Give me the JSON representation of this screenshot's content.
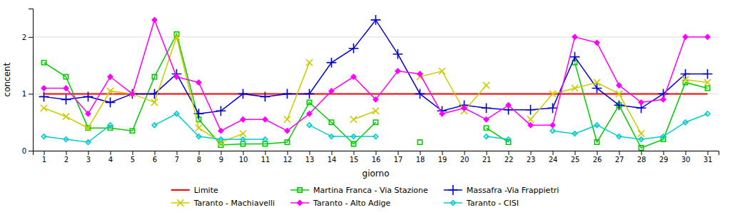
{
  "chart_data": {
    "type": "line",
    "xlabel": "giorno",
    "ylabel": "concent",
    "x": [
      1,
      2,
      3,
      4,
      5,
      6,
      7,
      8,
      9,
      10,
      11,
      12,
      13,
      14,
      15,
      16,
      17,
      18,
      19,
      20,
      21,
      22,
      23,
      24,
      25,
      26,
      27,
      28,
      29,
      30,
      31
    ],
    "xlim": [
      0.5,
      31.5
    ],
    "xticks": [
      1,
      2,
      3,
      4,
      5,
      6,
      7,
      8,
      9,
      10,
      11,
      12,
      13,
      14,
      15,
      16,
      17,
      18,
      19,
      20,
      21,
      22,
      23,
      24,
      25,
      26,
      27,
      28,
      29,
      30,
      31
    ],
    "ylim": [
      0,
      2.5
    ],
    "yticks": [
      0,
      1,
      2
    ],
    "grid": "y",
    "legend": "bottom",
    "series": [
      {
        "name": "Limite",
        "color": "#ff0000",
        "marker": "none",
        "line_style": "solid",
        "values": [
          1,
          1,
          1,
          1,
          1,
          1,
          1,
          1,
          1,
          1,
          1,
          1,
          1,
          1,
          1,
          1,
          1,
          1,
          1,
          1,
          1,
          1,
          1,
          1,
          1,
          1,
          1,
          1,
          1,
          1,
          1
        ]
      },
      {
        "name": "Martina Franca - Via Stazione",
        "color": "#00cc00",
        "marker": "square-open",
        "line_style": "solid",
        "values": [
          1.55,
          1.3,
          0.4,
          0.4,
          0.35,
          1.3,
          2.05,
          0.55,
          0.1,
          0.12,
          0.12,
          0.15,
          0.85,
          0.5,
          0.12,
          0.5,
          null,
          0.15,
          null,
          null,
          0.4,
          0.15,
          null,
          null,
          1.55,
          0.15,
          0.8,
          0.05,
          0.2,
          1.2,
          1.1
        ]
      },
      {
        "name": "Massafra -Via Frappietri",
        "color": "#0000cc",
        "marker": "plus",
        "line_style": "solid",
        "values": [
          0.95,
          0.9,
          0.95,
          0.85,
          1.0,
          1.0,
          1.35,
          0.65,
          0.7,
          1.0,
          0.95,
          1.0,
          1.0,
          1.55,
          1.8,
          2.3,
          1.7,
          1.0,
          0.7,
          0.8,
          0.75,
          0.72,
          0.72,
          0.75,
          1.65,
          1.1,
          0.8,
          0.75,
          1.0,
          1.35,
          1.35
        ]
      },
      {
        "name": "Taranto - Machiavelli",
        "color": "#cccc00",
        "marker": "x",
        "line_style": "solid",
        "values": [
          0.75,
          0.6,
          0.4,
          1.05,
          1.0,
          0.85,
          2.0,
          0.4,
          0.15,
          0.3,
          null,
          0.55,
          1.55,
          null,
          0.55,
          0.7,
          null,
          1.3,
          1.4,
          0.7,
          1.15,
          null,
          0.55,
          1.0,
          1.1,
          1.2,
          1.0,
          0.3,
          null,
          1.25,
          1.2
        ]
      },
      {
        "name": "Taranto - Alto Adige",
        "color": "#ff00ff",
        "marker": "diamond",
        "line_style": "solid",
        "values": [
          1.1,
          1.1,
          0.65,
          1.3,
          1.0,
          2.3,
          1.3,
          1.2,
          0.35,
          0.55,
          0.55,
          0.35,
          0.65,
          1.05,
          1.3,
          0.9,
          1.4,
          1.35,
          0.65,
          0.75,
          0.55,
          0.8,
          0.45,
          0.45,
          2.0,
          1.9,
          1.15,
          0.85,
          0.9,
          2.0,
          2.0
        ]
      },
      {
        "name": "Taranto - CISI",
        "color": "#00cccc",
        "marker": "diamond-open",
        "line_style": "solid",
        "values": [
          0.25,
          0.2,
          0.15,
          0.45,
          null,
          0.45,
          0.65,
          0.25,
          0.2,
          0.2,
          0.2,
          null,
          0.45,
          0.25,
          0.25,
          0.25,
          null,
          null,
          null,
          null,
          0.25,
          0.2,
          null,
          0.35,
          0.3,
          0.45,
          0.25,
          0.2,
          0.25,
          0.5,
          0.65
        ]
      }
    ]
  }
}
